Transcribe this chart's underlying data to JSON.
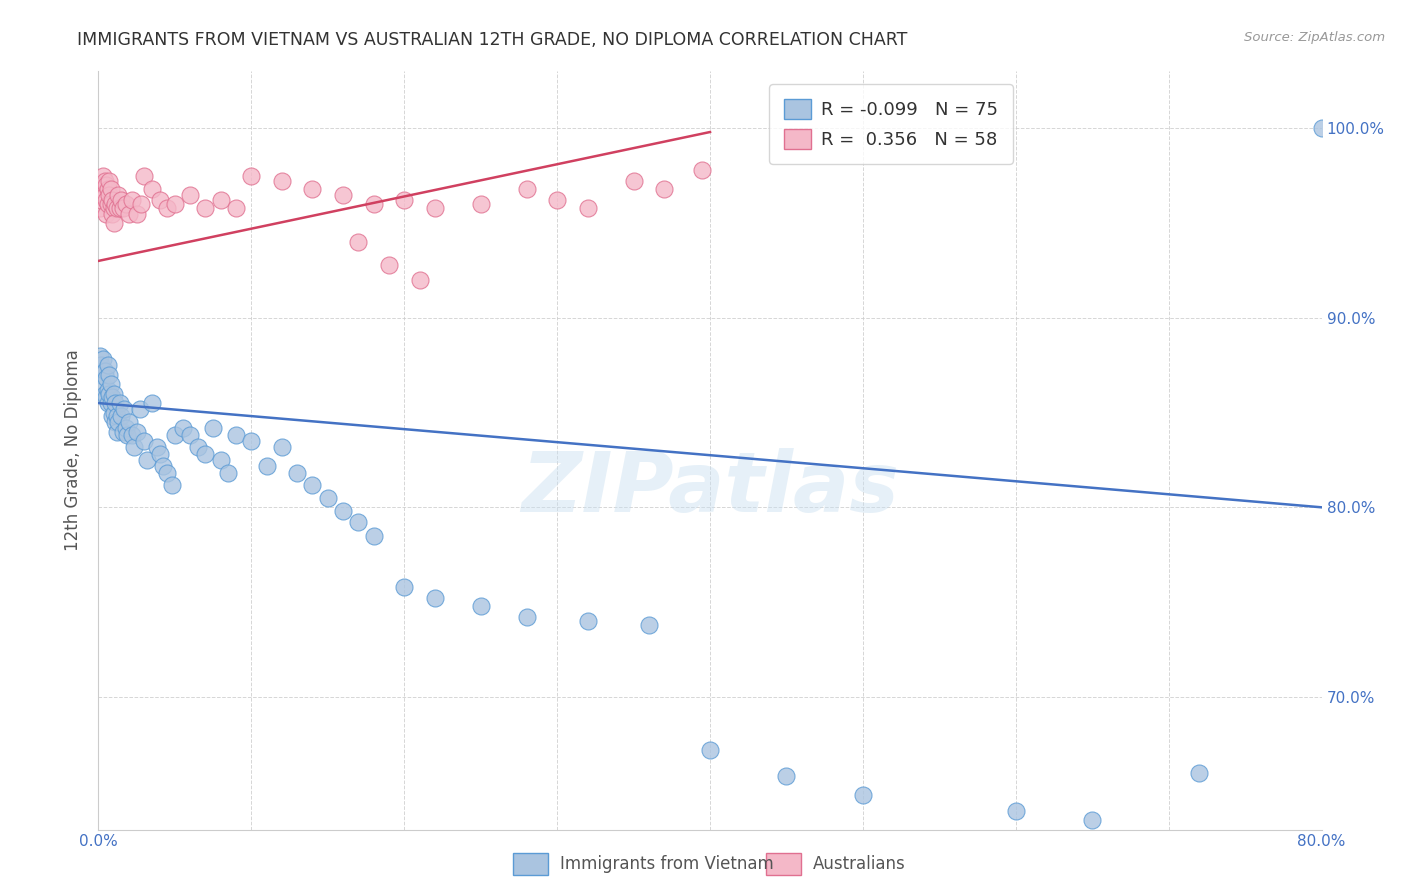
{
  "title": "IMMIGRANTS FROM VIETNAM VS AUSTRALIAN 12TH GRADE, NO DIPLOMA CORRELATION CHART",
  "source": "Source: ZipAtlas.com",
  "ylabel": "12th Grade, No Diploma",
  "x_label_blue": "Immigrants from Vietnam",
  "x_label_pink": "Australians",
  "xlim": [
    0.0,
    0.8
  ],
  "ylim": [
    0.63,
    1.03
  ],
  "yticks": [
    0.7,
    0.8,
    0.9,
    1.0
  ],
  "yticklabels": [
    "70.0%",
    "80.0%",
    "90.0%",
    "100.0%"
  ],
  "legend_R_blue": "-0.099",
  "legend_N_blue": "75",
  "legend_R_pink": "0.356",
  "legend_N_pink": "58",
  "blue_color": "#aac4e0",
  "blue_edge": "#5b9bd5",
  "pink_color": "#f4b8c8",
  "pink_edge": "#e07090",
  "blue_line_color": "#4472c4",
  "pink_line_color": "#d04060",
  "watermark": "ZIPatlas",
  "background_color": "#ffffff",
  "blue_x": [
    0.001,
    0.002,
    0.002,
    0.003,
    0.003,
    0.004,
    0.004,
    0.005,
    0.005,
    0.006,
    0.006,
    0.006,
    0.007,
    0.007,
    0.008,
    0.008,
    0.009,
    0.009,
    0.01,
    0.01,
    0.011,
    0.011,
    0.012,
    0.012,
    0.013,
    0.014,
    0.015,
    0.016,
    0.017,
    0.018,
    0.019,
    0.02,
    0.022,
    0.023,
    0.025,
    0.027,
    0.03,
    0.032,
    0.035,
    0.038,
    0.04,
    0.042,
    0.045,
    0.048,
    0.05,
    0.055,
    0.06,
    0.065,
    0.07,
    0.075,
    0.08,
    0.085,
    0.09,
    0.1,
    0.11,
    0.12,
    0.13,
    0.14,
    0.15,
    0.16,
    0.17,
    0.18,
    0.2,
    0.22,
    0.25,
    0.28,
    0.32,
    0.36,
    0.4,
    0.45,
    0.5,
    0.6,
    0.65,
    0.72,
    0.8
  ],
  "blue_y": [
    0.88,
    0.875,
    0.87,
    0.878,
    0.865,
    0.872,
    0.86,
    0.868,
    0.858,
    0.875,
    0.862,
    0.855,
    0.87,
    0.86,
    0.865,
    0.855,
    0.858,
    0.848,
    0.86,
    0.85,
    0.855,
    0.845,
    0.848,
    0.84,
    0.845,
    0.855,
    0.848,
    0.84,
    0.852,
    0.842,
    0.838,
    0.845,
    0.838,
    0.832,
    0.84,
    0.852,
    0.835,
    0.825,
    0.855,
    0.832,
    0.828,
    0.822,
    0.818,
    0.812,
    0.838,
    0.842,
    0.838,
    0.832,
    0.828,
    0.842,
    0.825,
    0.818,
    0.838,
    0.835,
    0.822,
    0.832,
    0.818,
    0.812,
    0.805,
    0.798,
    0.792,
    0.785,
    0.758,
    0.752,
    0.748,
    0.742,
    0.74,
    0.738,
    0.672,
    0.658,
    0.648,
    0.64,
    0.635,
    0.66,
    1.0
  ],
  "pink_x": [
    0.001,
    0.002,
    0.002,
    0.003,
    0.003,
    0.003,
    0.004,
    0.004,
    0.005,
    0.005,
    0.005,
    0.006,
    0.006,
    0.007,
    0.007,
    0.008,
    0.008,
    0.009,
    0.009,
    0.01,
    0.01,
    0.011,
    0.012,
    0.013,
    0.014,
    0.015,
    0.016,
    0.018,
    0.02,
    0.022,
    0.025,
    0.028,
    0.03,
    0.035,
    0.04,
    0.045,
    0.05,
    0.06,
    0.07,
    0.08,
    0.09,
    0.1,
    0.12,
    0.14,
    0.16,
    0.18,
    0.2,
    0.22,
    0.25,
    0.28,
    0.3,
    0.32,
    0.35,
    0.37,
    0.395,
    0.17,
    0.19,
    0.21
  ],
  "pink_y": [
    0.958,
    0.968,
    0.962,
    0.975,
    0.97,
    0.965,
    0.972,
    0.965,
    0.97,
    0.962,
    0.955,
    0.968,
    0.96,
    0.972,
    0.965,
    0.968,
    0.96,
    0.962,
    0.955,
    0.958,
    0.95,
    0.96,
    0.958,
    0.965,
    0.958,
    0.962,
    0.958,
    0.96,
    0.955,
    0.962,
    0.955,
    0.96,
    0.975,
    0.968,
    0.962,
    0.958,
    0.96,
    0.965,
    0.958,
    0.962,
    0.958,
    0.975,
    0.972,
    0.968,
    0.965,
    0.96,
    0.962,
    0.958,
    0.96,
    0.968,
    0.962,
    0.958,
    0.972,
    0.968,
    0.978,
    0.94,
    0.928,
    0.92
  ]
}
